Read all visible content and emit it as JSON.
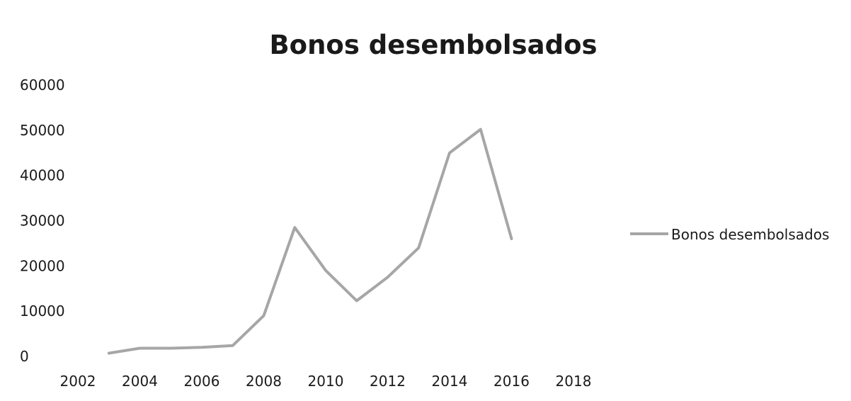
{
  "chart_data": {
    "type": "line",
    "title": "Bonos desembolsados",
    "xlabel": "",
    "ylabel": "",
    "xlim": [
      2002,
      2018
    ],
    "ylim": [
      0,
      60000
    ],
    "x_ticks": [
      "2002",
      "2004",
      "2006",
      "2008",
      "2010",
      "2012",
      "2014",
      "2016",
      "2018"
    ],
    "y_ticks": [
      "0",
      "10000",
      "20000",
      "30000",
      "40000",
      "50000",
      "60000"
    ],
    "grid": false,
    "legend_position": "right",
    "series": [
      {
        "name": "Bonos desembolsados",
        "color": "#a6a6a6",
        "x": [
          2003,
          2004,
          2005,
          2006,
          2007,
          2008,
          2009,
          2010,
          2011,
          2012,
          2013,
          2014,
          2015,
          2016
        ],
        "values": [
          700,
          1800,
          1800,
          2000,
          2400,
          9000,
          28500,
          19000,
          12300,
          17500,
          24000,
          45000,
          50200,
          26000
        ]
      }
    ]
  }
}
